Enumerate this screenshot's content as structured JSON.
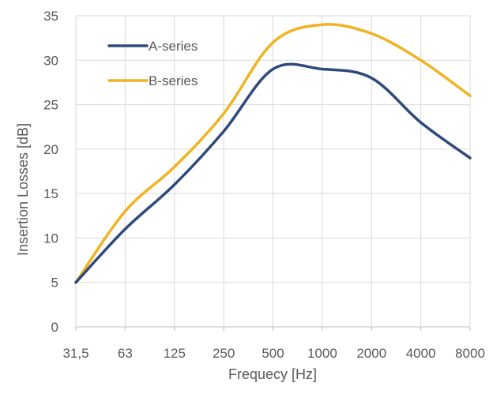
{
  "chart_data": {
    "type": "line",
    "categories": [
      "31,5",
      "63",
      "125",
      "250",
      "500",
      "1000",
      "2000",
      "4000",
      "8000"
    ],
    "series": [
      {
        "name": "A-series",
        "color": "#2F4B7C",
        "values": [
          5,
          11,
          16,
          22,
          29,
          29,
          28,
          23,
          19
        ]
      },
      {
        "name": "B-series",
        "color": "#F0B323",
        "values": [
          5,
          13,
          18,
          24,
          32,
          34,
          33,
          30,
          26
        ]
      }
    ],
    "xlabel": "Frequecy [Hz]",
    "ylabel": "Insertion Losses [dB]",
    "ylim": [
      0,
      35
    ],
    "yticks": [
      0,
      5,
      10,
      15,
      20,
      25,
      30,
      35
    ],
    "grid": true,
    "legend_position": "top-left",
    "smoothed": true
  }
}
